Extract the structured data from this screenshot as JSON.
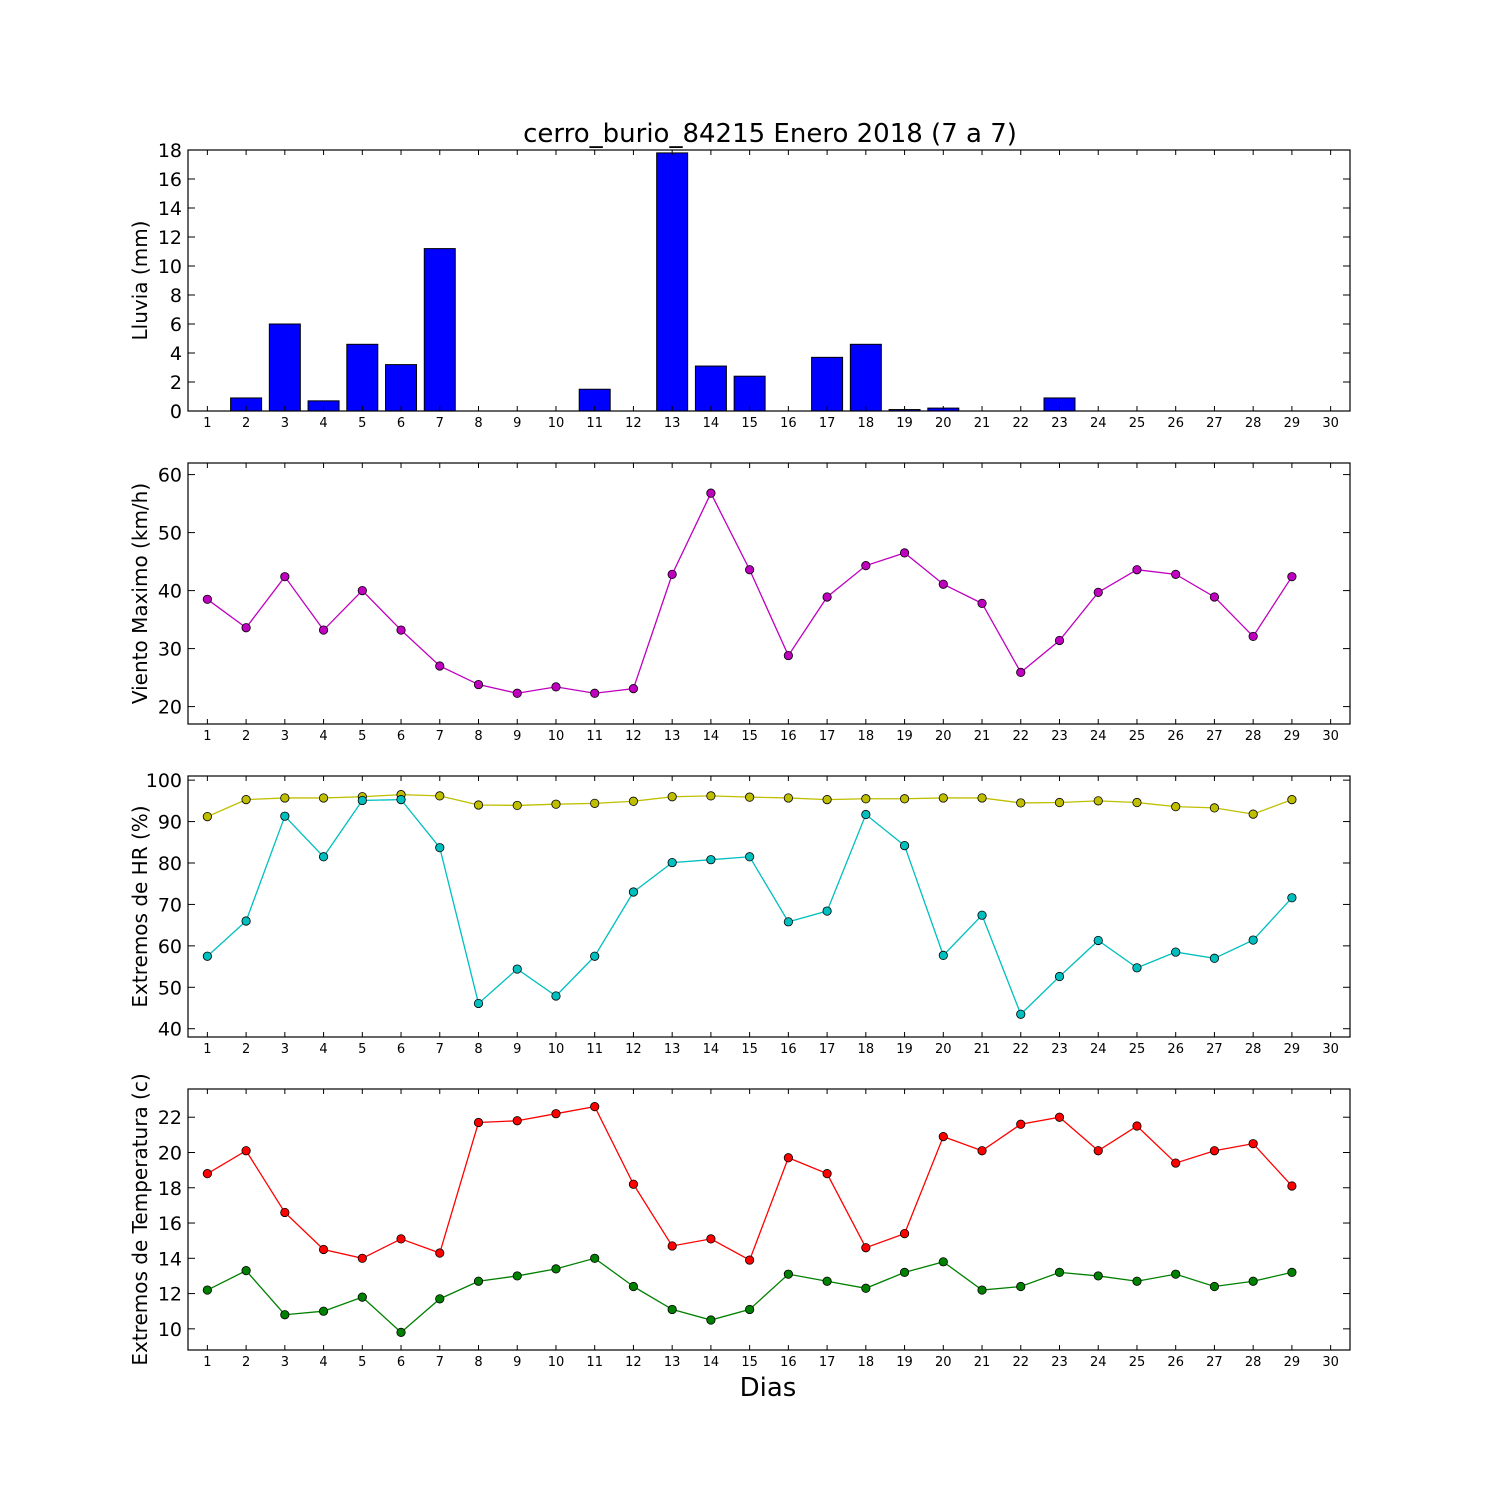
{
  "title": "cerro_burio_84215 Enero 2018  (7 a 7)",
  "xlabel": "Dias",
  "chart_data": [
    {
      "type": "bar",
      "ylabel": "Lluvia (mm)",
      "ylim": [
        0,
        18
      ],
      "yticks": [
        0,
        2,
        4,
        6,
        8,
        10,
        12,
        14,
        16,
        18
      ],
      "xticks": [
        1,
        2,
        3,
        4,
        5,
        6,
        7,
        8,
        9,
        10,
        11,
        12,
        13,
        14,
        15,
        16,
        17,
        18,
        19,
        20,
        21,
        22,
        23,
        24,
        25,
        26,
        27,
        28,
        29,
        30
      ],
      "grid": false,
      "series": [
        {
          "color": "#0000ff",
          "x": [
            1,
            2,
            3,
            4,
            5,
            6,
            7,
            8,
            9,
            10,
            11,
            12,
            13,
            14,
            15,
            16,
            17,
            18,
            19,
            20,
            21,
            22,
            23,
            24,
            25,
            26,
            27,
            28,
            29
          ],
          "values": [
            0,
            0.9,
            6.0,
            0.7,
            4.6,
            3.2,
            11.2,
            0,
            0,
            0,
            1.5,
            0,
            17.8,
            3.1,
            2.4,
            0,
            3.7,
            4.6,
            0.1,
            0.2,
            0,
            0,
            0.9,
            0,
            0,
            0,
            0,
            0,
            0
          ]
        }
      ]
    },
    {
      "type": "line",
      "ylabel": "Viento Maximo (km/h)",
      "ylim": [
        17,
        62
      ],
      "yticks": [
        20,
        30,
        40,
        50,
        60
      ],
      "xticks": [
        1,
        2,
        3,
        4,
        5,
        6,
        7,
        8,
        9,
        10,
        11,
        12,
        13,
        14,
        15,
        16,
        17,
        18,
        19,
        20,
        21,
        22,
        23,
        24,
        25,
        26,
        27,
        28,
        29,
        30
      ],
      "grid": false,
      "series": [
        {
          "color": "#bf00bf",
          "x": [
            1,
            2,
            3,
            4,
            5,
            6,
            7,
            8,
            9,
            10,
            11,
            12,
            13,
            14,
            15,
            16,
            17,
            18,
            19,
            20,
            21,
            22,
            23,
            24,
            25,
            26,
            27,
            28,
            29
          ],
          "values": [
            38.5,
            33.6,
            42.4,
            33.2,
            40.0,
            33.2,
            27.0,
            23.8,
            22.3,
            23.4,
            22.3,
            23.1,
            42.8,
            56.8,
            43.6,
            28.8,
            38.9,
            44.3,
            46.5,
            41.1,
            37.8,
            25.9,
            31.4,
            39.7,
            43.6,
            42.8,
            38.9,
            32.1,
            42.4
          ]
        }
      ]
    },
    {
      "type": "line",
      "ylabel": "Extremos de HR (%)",
      "ylim": [
        38,
        101
      ],
      "yticks": [
        40,
        50,
        60,
        70,
        80,
        90,
        100
      ],
      "xticks": [
        1,
        2,
        3,
        4,
        5,
        6,
        7,
        8,
        9,
        10,
        11,
        12,
        13,
        14,
        15,
        16,
        17,
        18,
        19,
        20,
        21,
        22,
        23,
        24,
        25,
        26,
        27,
        28,
        29,
        30
      ],
      "grid": false,
      "series": [
        {
          "color": "#bfbf00",
          "x": [
            1,
            2,
            3,
            4,
            5,
            6,
            7,
            8,
            9,
            10,
            11,
            12,
            13,
            14,
            15,
            16,
            17,
            18,
            19,
            20,
            21,
            22,
            23,
            24,
            25,
            26,
            27,
            28,
            29
          ],
          "values": [
            91.2,
            95.3,
            95.7,
            95.7,
            96.0,
            96.5,
            96.2,
            94.0,
            93.9,
            94.2,
            94.4,
            94.9,
            96.0,
            96.2,
            95.9,
            95.7,
            95.3,
            95.5,
            95.5,
            95.7,
            95.7,
            94.5,
            94.6,
            95.0,
            94.6,
            93.6,
            93.3,
            91.8,
            95.3
          ]
        },
        {
          "color": "#00bfbf",
          "x": [
            1,
            2,
            3,
            4,
            5,
            6,
            7,
            8,
            9,
            10,
            11,
            12,
            13,
            14,
            15,
            16,
            17,
            18,
            19,
            20,
            21,
            22,
            23,
            24,
            25,
            26,
            27,
            28,
            29
          ],
          "values": [
            57.5,
            66.0,
            91.3,
            81.5,
            95.1,
            95.3,
            83.7,
            46.1,
            54.4,
            47.9,
            57.5,
            73.0,
            80.1,
            80.8,
            81.5,
            65.8,
            68.4,
            91.7,
            84.2,
            57.7,
            67.4,
            43.5,
            52.6,
            61.3,
            54.7,
            58.5,
            57.0,
            61.4,
            71.6
          ]
        }
      ]
    },
    {
      "type": "line",
      "ylabel": "Extremos de Temperatura (c)",
      "ylim": [
        8.8,
        23.6
      ],
      "yticks": [
        10,
        12,
        14,
        16,
        18,
        20,
        22
      ],
      "xticks": [
        1,
        2,
        3,
        4,
        5,
        6,
        7,
        8,
        9,
        10,
        11,
        12,
        13,
        14,
        15,
        16,
        17,
        18,
        19,
        20,
        21,
        22,
        23,
        24,
        25,
        26,
        27,
        28,
        29,
        30
      ],
      "grid": false,
      "series": [
        {
          "color": "#ff0000",
          "x": [
            1,
            2,
            3,
            4,
            5,
            6,
            7,
            8,
            9,
            10,
            11,
            12,
            13,
            14,
            15,
            16,
            17,
            18,
            19,
            20,
            21,
            22,
            23,
            24,
            25,
            26,
            27,
            28,
            29
          ],
          "values": [
            18.8,
            20.1,
            16.6,
            14.5,
            14.0,
            15.1,
            14.3,
            21.7,
            21.8,
            22.2,
            22.6,
            18.2,
            14.7,
            15.1,
            13.9,
            19.7,
            18.8,
            14.6,
            15.4,
            20.9,
            20.1,
            21.6,
            22.0,
            20.1,
            21.5,
            19.4,
            20.1,
            20.5,
            18.1
          ]
        },
        {
          "color": "#008000",
          "x": [
            1,
            2,
            3,
            4,
            5,
            6,
            7,
            8,
            9,
            10,
            11,
            12,
            13,
            14,
            15,
            16,
            17,
            18,
            19,
            20,
            21,
            22,
            23,
            24,
            25,
            26,
            27,
            28,
            29
          ],
          "values": [
            12.2,
            13.3,
            10.8,
            11.0,
            11.8,
            9.8,
            11.7,
            12.7,
            13.0,
            13.4,
            14.0,
            12.4,
            11.1,
            10.5,
            11.1,
            13.1,
            12.7,
            12.3,
            13.2,
            13.8,
            12.2,
            12.4,
            13.2,
            13.0,
            12.7,
            13.1,
            12.4,
            12.7,
            13.2
          ]
        }
      ]
    }
  ]
}
